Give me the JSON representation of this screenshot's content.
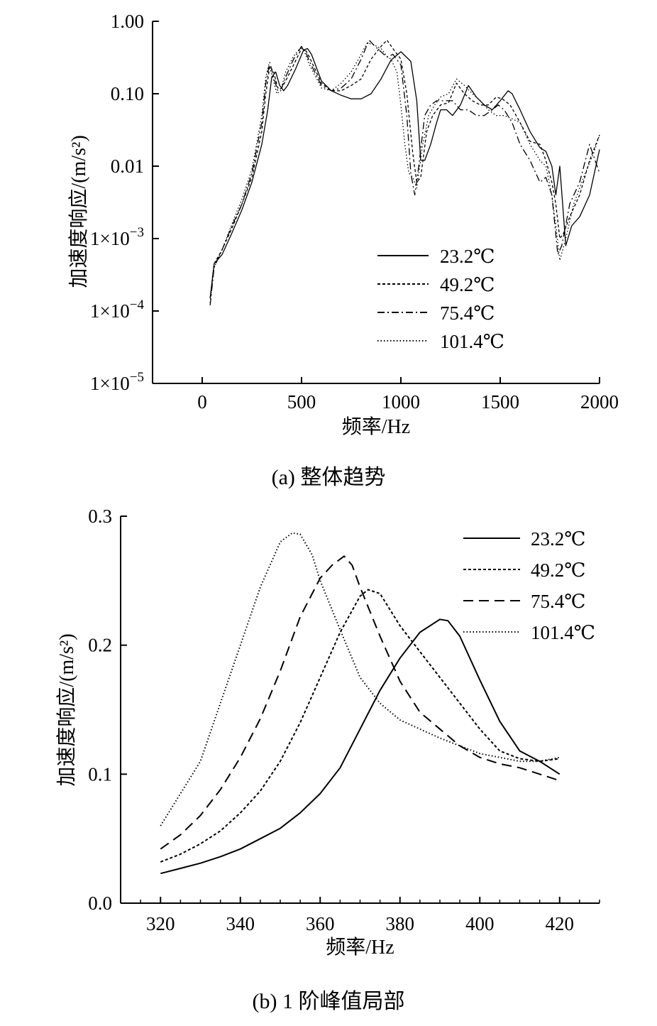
{
  "chart_data": [
    {
      "type": "line",
      "panel": "a",
      "caption": "(a)  整体趋势",
      "xlabel": "频率/Hz",
      "ylabel": "加速度响应/(m/s²)",
      "y_scale": "log",
      "xlim": [
        -250,
        2000
      ],
      "ylim": [
        1e-05,
        1
      ],
      "x_ticks": [
        0,
        500,
        1000,
        1500,
        2000
      ],
      "x_tick_labels": [
        "0",
        "500",
        "1000",
        "1500",
        "2000"
      ],
      "y_ticks": [
        1e-05,
        0.0001,
        0.001,
        0.01,
        0.1,
        1
      ],
      "y_tick_labels": [
        {
          "base": "1×10",
          "exp": "−5"
        },
        {
          "base": "1×10",
          "exp": "−4"
        },
        {
          "base": "1×10",
          "exp": "−3"
        },
        {
          "base": "0.01",
          "exp": ""
        },
        {
          "base": "0.10",
          "exp": ""
        },
        {
          "base": "1.00",
          "exp": ""
        }
      ],
      "grid": false,
      "legend_position": "lower-right",
      "series": [
        {
          "name": "23.2℃",
          "style": "solid",
          "x": [
            40,
            60,
            100,
            150,
            200,
            250,
            300,
            330,
            350,
            370,
            390,
            410,
            430,
            470,
            510,
            530,
            550,
            600,
            650,
            700,
            750,
            800,
            850,
            900,
            950,
            1000,
            1050,
            1080,
            1100,
            1120,
            1150,
            1180,
            1200,
            1230,
            1260,
            1300,
            1340,
            1380,
            1420,
            1460,
            1500,
            1540,
            1560,
            1600,
            1650,
            1700,
            1730,
            1760,
            1780,
            1800,
            1830,
            1860,
            1900,
            1950,
            2000
          ],
          "y": [
            0.00015,
            0.00045,
            0.0006,
            0.0012,
            0.0025,
            0.006,
            0.02,
            0.06,
            0.17,
            0.2,
            0.13,
            0.11,
            0.13,
            0.22,
            0.4,
            0.42,
            0.35,
            0.15,
            0.11,
            0.095,
            0.085,
            0.085,
            0.1,
            0.16,
            0.29,
            0.38,
            0.28,
            0.08,
            0.012,
            0.012,
            0.02,
            0.04,
            0.06,
            0.06,
            0.05,
            0.07,
            0.13,
            0.09,
            0.07,
            0.06,
            0.08,
            0.11,
            0.1,
            0.06,
            0.03,
            0.018,
            0.016,
            0.01,
            0.004,
            0.01,
            0.0008,
            0.0015,
            0.002,
            0.004,
            0.017
          ]
        },
        {
          "name": "49.2℃",
          "style": "dashed",
          "x": [
            40,
            60,
            100,
            150,
            200,
            250,
            300,
            320,
            340,
            360,
            380,
            400,
            420,
            460,
            500,
            520,
            540,
            600,
            650,
            700,
            750,
            800,
            850,
            900,
            930,
            960,
            1000,
            1030,
            1060,
            1080,
            1100,
            1130,
            1160,
            1200,
            1240,
            1280,
            1320,
            1360,
            1400,
            1440,
            1480,
            1510,
            1550,
            1600,
            1650,
            1700,
            1730,
            1760,
            1780,
            1800,
            1820,
            1850,
            1900,
            1950,
            2000
          ],
          "y": [
            0.00015,
            0.00045,
            0.0007,
            0.0014,
            0.003,
            0.007,
            0.03,
            0.1,
            0.24,
            0.2,
            0.12,
            0.12,
            0.15,
            0.25,
            0.42,
            0.4,
            0.32,
            0.14,
            0.11,
            0.11,
            0.13,
            0.16,
            0.3,
            0.45,
            0.55,
            0.42,
            0.3,
            0.1,
            0.015,
            0.006,
            0.007,
            0.03,
            0.05,
            0.07,
            0.075,
            0.14,
            0.1,
            0.08,
            0.07,
            0.07,
            0.09,
            0.085,
            0.07,
            0.04,
            0.022,
            0.02,
            0.012,
            0.006,
            0.003,
            0.001,
            0.0012,
            0.002,
            0.004,
            0.012,
            0.027
          ]
        },
        {
          "name": "75.4℃",
          "style": "dashdot",
          "x": [
            40,
            60,
            100,
            150,
            200,
            250,
            300,
            320,
            340,
            360,
            380,
            400,
            420,
            460,
            500,
            520,
            540,
            600,
            650,
            700,
            750,
            800,
            840,
            870,
            900,
            930,
            960,
            1000,
            1030,
            1050,
            1070,
            1090,
            1120,
            1150,
            1180,
            1220,
            1260,
            1300,
            1340,
            1380,
            1420,
            1460,
            1490,
            1520,
            1560,
            1600,
            1650,
            1700,
            1730,
            1760,
            1790,
            1810,
            1850,
            1900,
            1950,
            2000
          ],
          "y": [
            0.00012,
            0.0004,
            0.0007,
            0.0015,
            0.003,
            0.008,
            0.04,
            0.14,
            0.27,
            0.17,
            0.11,
            0.12,
            0.17,
            0.3,
            0.45,
            0.38,
            0.28,
            0.13,
            0.11,
            0.12,
            0.16,
            0.3,
            0.55,
            0.45,
            0.38,
            0.32,
            0.35,
            0.25,
            0.05,
            0.008,
            0.004,
            0.01,
            0.05,
            0.07,
            0.08,
            0.08,
            0.08,
            0.06,
            0.06,
            0.05,
            0.05,
            0.06,
            0.07,
            0.06,
            0.04,
            0.02,
            0.012,
            0.006,
            0.007,
            0.004,
            0.0006,
            0.0008,
            0.003,
            0.006,
            0.02,
            0.008
          ]
        },
        {
          "name": "101.4℃",
          "style": "dotted",
          "x": [
            40,
            60,
            100,
            150,
            200,
            250,
            300,
            320,
            335,
            355,
            375,
            395,
            420,
            460,
            500,
            520,
            540,
            600,
            650,
            700,
            750,
            800,
            830,
            860,
            900,
            930,
            950,
            980,
            1000,
            1020,
            1040,
            1060,
            1080,
            1110,
            1140,
            1170,
            1200,
            1240,
            1280,
            1320,
            1360,
            1400,
            1440,
            1480,
            1520,
            1560,
            1600,
            1650,
            1700,
            1730,
            1760,
            1780,
            1800,
            1830,
            1870,
            1920,
            1970,
            2000
          ],
          "y": [
            0.00013,
            0.0004,
            0.0007,
            0.0016,
            0.0035,
            0.009,
            0.05,
            0.17,
            0.25,
            0.17,
            0.1,
            0.11,
            0.2,
            0.33,
            0.45,
            0.35,
            0.25,
            0.12,
            0.11,
            0.14,
            0.2,
            0.35,
            0.5,
            0.48,
            0.42,
            0.33,
            0.3,
            0.2,
            0.07,
            0.02,
            0.008,
            0.007,
            0.005,
            0.02,
            0.05,
            0.07,
            0.09,
            0.1,
            0.16,
            0.13,
            0.1,
            0.08,
            0.06,
            0.05,
            0.05,
            0.045,
            0.04,
            0.02,
            0.012,
            0.01,
            0.004,
            0.0015,
            0.0005,
            0.001,
            0.003,
            0.007,
            0.015,
            0.027
          ]
        }
      ]
    },
    {
      "type": "line",
      "panel": "b",
      "caption": "(b) 1 阶峰值局部",
      "xlabel": "频率/Hz",
      "ylabel": "加速度响应/(m/s²)",
      "y_scale": "linear",
      "xlim": [
        310,
        430
      ],
      "ylim": [
        0,
        0.3
      ],
      "x_ticks": [
        320,
        340,
        360,
        380,
        400,
        420
      ],
      "x_tick_labels": [
        "320",
        "340",
        "360",
        "380",
        "400",
        "420"
      ],
      "x_minor_step": 5,
      "y_ticks": [
        0,
        0.1,
        0.2,
        0.3
      ],
      "y_tick_labels": [
        {
          "base": "0.0",
          "exp": ""
        },
        {
          "base": "0.1",
          "exp": ""
        },
        {
          "base": "0.2",
          "exp": ""
        },
        {
          "base": "0.3",
          "exp": ""
        }
      ],
      "grid": false,
      "legend_position": "top-right",
      "series": [
        {
          "name": "23.2℃",
          "style": "solid",
          "x": [
            320,
            325,
            330,
            335,
            340,
            345,
            350,
            355,
            360,
            365,
            370,
            375,
            380,
            385,
            390,
            392,
            395,
            400,
            405,
            410,
            415,
            420
          ],
          "y": [
            0.023,
            0.027,
            0.031,
            0.036,
            0.042,
            0.05,
            0.058,
            0.07,
            0.085,
            0.105,
            0.135,
            0.165,
            0.19,
            0.21,
            0.22,
            0.219,
            0.207,
            0.173,
            0.141,
            0.118,
            0.11,
            0.1
          ]
        },
        {
          "name": "49.2℃",
          "style": "dashed",
          "x": [
            320,
            325,
            330,
            335,
            340,
            345,
            350,
            355,
            360,
            365,
            370,
            372,
            375,
            380,
            385,
            390,
            395,
            400,
            405,
            410,
            415,
            420
          ],
          "y": [
            0.032,
            0.038,
            0.046,
            0.056,
            0.07,
            0.087,
            0.11,
            0.14,
            0.175,
            0.21,
            0.238,
            0.243,
            0.24,
            0.215,
            0.195,
            0.175,
            0.155,
            0.135,
            0.118,
            0.112,
            0.11,
            0.112
          ]
        },
        {
          "name": "75.4℃",
          "style": "longdash",
          "x": [
            320,
            325,
            330,
            335,
            340,
            345,
            350,
            355,
            360,
            363,
            366,
            368,
            370,
            375,
            380,
            385,
            390,
            395,
            400,
            405,
            410,
            415,
            420
          ],
          "y": [
            0.042,
            0.053,
            0.068,
            0.088,
            0.113,
            0.143,
            0.18,
            0.222,
            0.252,
            0.262,
            0.269,
            0.262,
            0.245,
            0.207,
            0.172,
            0.148,
            0.135,
            0.122,
            0.113,
            0.108,
            0.105,
            0.1,
            0.095
          ]
        },
        {
          "name": "101.4℃",
          "style": "dotted",
          "x": [
            320,
            325,
            330,
            335,
            340,
            345,
            350,
            353,
            355,
            358,
            360,
            365,
            370,
            375,
            380,
            385,
            390,
            395,
            400,
            405,
            410,
            415,
            420
          ],
          "y": [
            0.06,
            0.085,
            0.11,
            0.155,
            0.2,
            0.245,
            0.28,
            0.287,
            0.286,
            0.27,
            0.25,
            0.212,
            0.175,
            0.155,
            0.142,
            0.135,
            0.128,
            0.122,
            0.116,
            0.113,
            0.11,
            0.11,
            0.113
          ]
        }
      ]
    }
  ]
}
